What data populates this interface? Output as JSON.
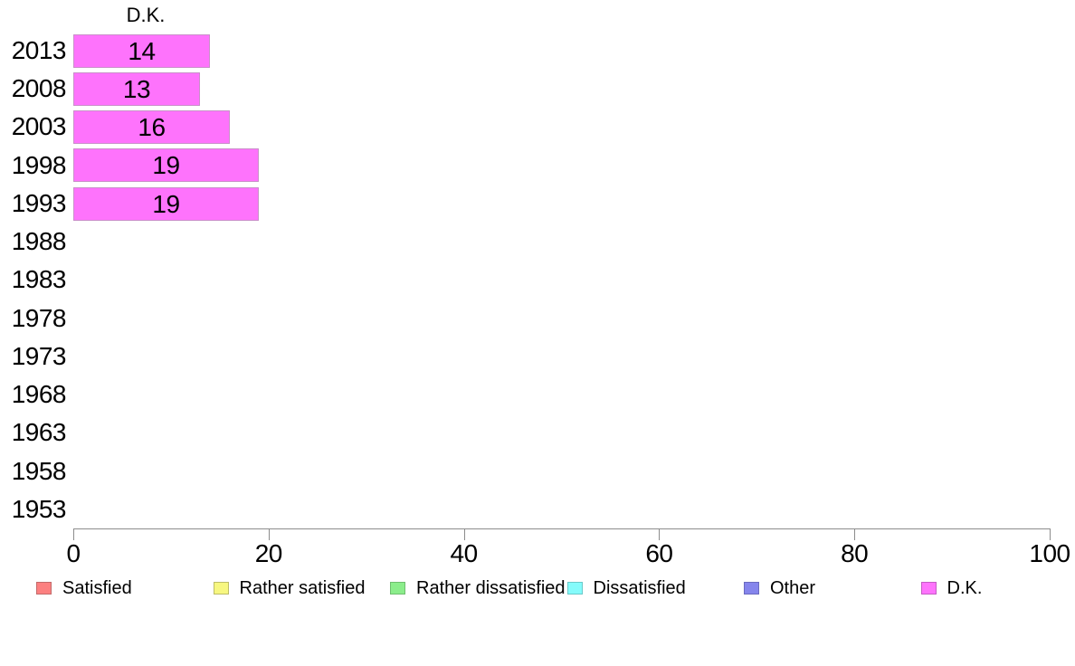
{
  "chart_data": {
    "type": "bar",
    "orientation": "horizontal",
    "title": "D.K.",
    "categories": [
      "2013",
      "2008",
      "2003",
      "1998",
      "1993",
      "1988",
      "1983",
      "1978",
      "1973",
      "1968",
      "1963",
      "1958",
      "1953"
    ],
    "values": [
      14,
      13,
      16,
      19,
      19,
      null,
      null,
      null,
      null,
      null,
      null,
      null,
      null
    ],
    "bar_labels": [
      "14",
      "13",
      "16",
      "19",
      "19",
      "",
      "",
      "",
      "",
      "",
      "",
      "",
      ""
    ],
    "xlabel": "",
    "ylabel": "",
    "xlim": [
      0,
      100
    ],
    "x_ticks": [
      0,
      20,
      40,
      60,
      80,
      100
    ],
    "grid": false,
    "legend_position": "bottom",
    "bar_color": "#fe73fc",
    "bar_border_color": "#c98fc9",
    "axis_color": "#8c8c8c",
    "text_color": "#000000",
    "legend": [
      {
        "label": "Satisfied",
        "color": "#fc8080",
        "border": "#c26a6a"
      },
      {
        "label": "Rather satisfied",
        "color": "#f7f780",
        "border": "#bdbd68"
      },
      {
        "label": "Rather dissatisfied",
        "color": "#8bed8b",
        "border": "#6fbe6f"
      },
      {
        "label": "Dissatisfied",
        "color": "#85fbfb",
        "border": "#6ac9c9"
      },
      {
        "label": "Other",
        "color": "#8585ec",
        "border": "#6a6abf"
      },
      {
        "label": "D.K.",
        "color": "#fe73fc",
        "border": "#c45cc4"
      }
    ]
  }
}
